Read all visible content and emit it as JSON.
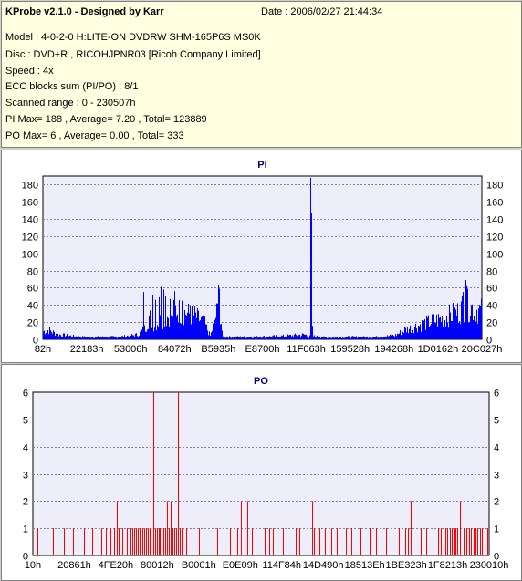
{
  "header": {
    "title": "KProbe v2.1.0 - Designed by Karr",
    "date": "Date : 2006/02/27 21:44:34",
    "lines": [
      "Model : 4-0-2-0 H:LITE-ON DVDRW SHM-165P6S MS0K",
      "Disc : DVD+R , RICOHJPNR03 [Ricoh Company Limited]",
      "Speed : 4x",
      "ECC blocks sum (PI/PO) : 8/1",
      "Scanned range : 0 - 230507h",
      "PI Max= 188 , Average= 7.20 , Total= 123889",
      "PO Max= 6 , Average= 0.00 , Total= 333"
    ]
  },
  "colors": {
    "bar": "#0000ff",
    "po_bar": "#ff0000",
    "plot_bg": "#eeeefa",
    "grid": "#8080a0"
  },
  "chart_data": [
    {
      "type": "bar",
      "title": "PI",
      "ylim": [
        0,
        190
      ],
      "yticks": [
        0,
        20,
        40,
        60,
        80,
        100,
        120,
        140,
        160,
        180
      ],
      "xlim": [
        0,
        230507
      ],
      "xtick_labels": [
        "82h",
        "22183h",
        "53006h",
        "84072h",
        "B5935h",
        "E8700h",
        "11F063h",
        "159528h",
        "194268h",
        "1D0162h",
        "20C027h"
      ],
      "grid": true,
      "series": [
        {
          "color": "#0000ff",
          "profile": [
            [
              0,
              10
            ],
            [
              3000,
              12
            ],
            [
              8000,
              6
            ],
            [
              20000,
              3
            ],
            [
              40000,
              3
            ],
            [
              50000,
              6
            ],
            [
              54000,
              15
            ],
            [
              56000,
              30
            ],
            [
              58000,
              18
            ],
            [
              62000,
              25
            ],
            [
              66000,
              30
            ],
            [
              70000,
              38
            ],
            [
              75000,
              34
            ],
            [
              80000,
              30
            ],
            [
              85000,
              20
            ],
            [
              88000,
              4
            ],
            [
              92000,
              40
            ],
            [
              93500,
              15
            ],
            [
              95000,
              3
            ],
            [
              110000,
              3
            ],
            [
              125000,
              4
            ],
            [
              138000,
              6
            ],
            [
              140000,
              2
            ],
            [
              141000,
              25
            ],
            [
              142000,
              4
            ],
            [
              150000,
              2
            ],
            [
              160000,
              3
            ],
            [
              175000,
              3
            ],
            [
              185000,
              5
            ],
            [
              190000,
              12
            ],
            [
              200000,
              20
            ],
            [
              210000,
              27
            ],
            [
              218000,
              35
            ],
            [
              222000,
              45
            ],
            [
              226000,
              40
            ],
            [
              230507,
              36
            ]
          ],
          "spikes": [
            [
              52800,
              55
            ],
            [
              57400,
              52
            ],
            [
              58900,
              46
            ],
            [
              61000,
              49
            ],
            [
              61800,
              61
            ],
            [
              63200,
              58
            ],
            [
              64300,
              51
            ],
            [
              66700,
              47
            ],
            [
              69100,
              56
            ],
            [
              72800,
              45
            ],
            [
              77200,
              39
            ],
            [
              91800,
              63
            ],
            [
              92400,
              59
            ],
            [
              140500,
              188
            ],
            [
              140900,
              147
            ],
            [
              220500,
              55
            ],
            [
              221200,
              75
            ],
            [
              221700,
              69
            ],
            [
              222400,
              62
            ]
          ]
        }
      ]
    },
    {
      "type": "bar",
      "title": "PO",
      "ylim": [
        0,
        6
      ],
      "yticks": [
        0,
        1,
        2,
        3,
        4,
        5,
        6
      ],
      "xlim": [
        0,
        230507
      ],
      "xtick_labels": [
        "10h",
        "20861h",
        "4FE20h",
        "80012h",
        "B0001h",
        "E0E09h",
        "114F84h",
        "14D490h",
        "18513Eh",
        "1BE323h",
        "1F8213h",
        "230010h"
      ],
      "grid": true,
      "series": [
        {
          "color": "#ff0000",
          "bars": [
            [
              2500,
              1
            ],
            [
              10100,
              1
            ],
            [
              15600,
              1
            ],
            [
              20300,
              1
            ],
            [
              25900,
              1
            ],
            [
              30100,
              1
            ],
            [
              34500,
              1
            ],
            [
              36900,
              1
            ],
            [
              39400,
              1
            ],
            [
              40900,
              1
            ],
            [
              42200,
              2
            ],
            [
              43500,
              1
            ],
            [
              45200,
              1
            ],
            [
              47600,
              1
            ],
            [
              49100,
              1
            ],
            [
              50400,
              1
            ],
            [
              51300,
              1
            ],
            [
              52100,
              1
            ],
            [
              53000,
              1
            ],
            [
              53800,
              1
            ],
            [
              54600,
              1
            ],
            [
              55500,
              1
            ],
            [
              56300,
              1
            ],
            [
              57100,
              1
            ],
            [
              57900,
              1
            ],
            [
              59000,
              1
            ],
            [
              60800,
              6
            ],
            [
              61700,
              1
            ],
            [
              62500,
              1
            ],
            [
              63400,
              1
            ],
            [
              64200,
              1
            ],
            [
              65000,
              1
            ],
            [
              65900,
              1
            ],
            [
              66800,
              1
            ],
            [
              67700,
              2
            ],
            [
              68800,
              1
            ],
            [
              69600,
              2
            ],
            [
              70600,
              1
            ],
            [
              71500,
              1
            ],
            [
              72500,
              1
            ],
            [
              73500,
              6
            ],
            [
              74400,
              1
            ],
            [
              75300,
              1
            ],
            [
              77500,
              1
            ],
            [
              84000,
              1
            ],
            [
              92900,
              1
            ],
            [
              99600,
              1
            ],
            [
              103200,
              1
            ],
            [
              105100,
              2
            ],
            [
              108400,
              2
            ],
            [
              110700,
              1
            ],
            [
              112600,
              1
            ],
            [
              117300,
              1
            ],
            [
              119500,
              1
            ],
            [
              121200,
              1
            ],
            [
              126200,
              1
            ],
            [
              132900,
              1
            ],
            [
              134700,
              1
            ],
            [
              140900,
              2
            ],
            [
              142100,
              1
            ],
            [
              144800,
              1
            ],
            [
              147600,
              1
            ],
            [
              150900,
              1
            ],
            [
              153700,
              1
            ],
            [
              157900,
              1
            ],
            [
              161100,
              1
            ],
            [
              165500,
              1
            ],
            [
              170100,
              1
            ],
            [
              173500,
              1
            ],
            [
              178300,
              1
            ],
            [
              184800,
              1
            ],
            [
              188200,
              1
            ],
            [
              189600,
              1
            ],
            [
              190700,
              2
            ],
            [
              196100,
              1
            ],
            [
              198800,
              1
            ],
            [
              204500,
              1
            ],
            [
              205900,
              1
            ],
            [
              207400,
              1
            ],
            [
              208300,
              1
            ],
            [
              209500,
              1
            ],
            [
              210500,
              1
            ],
            [
              211700,
              1
            ],
            [
              212800,
              1
            ],
            [
              213500,
              1
            ],
            [
              214400,
              1
            ],
            [
              215800,
              2
            ],
            [
              217500,
              1
            ],
            [
              218900,
              1
            ],
            [
              220200,
              1
            ],
            [
              221400,
              1
            ],
            [
              222600,
              1
            ],
            [
              223400,
              1
            ],
            [
              224400,
              1
            ],
            [
              225700,
              1
            ],
            [
              226800,
              1
            ],
            [
              228200,
              1
            ],
            [
              229400,
              1
            ]
          ]
        }
      ]
    }
  ]
}
